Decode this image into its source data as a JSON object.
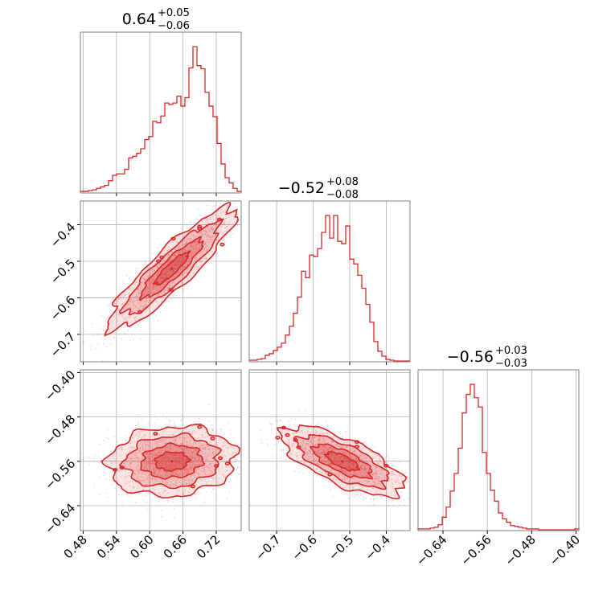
{
  "chart_data": {
    "type": "corner",
    "color": "#d62728",
    "grid": true,
    "parameters": [
      {
        "title": {
          "median": "0.64",
          "plus": "+0.05",
          "minus": "−0.06"
        },
        "range": [
          0.475,
          0.765
        ],
        "ticks": [
          0.48,
          0.54,
          0.6,
          0.66,
          0.72
        ],
        "tick_labels": [
          "0.48",
          "0.54",
          "0.60",
          "0.66",
          "0.72"
        ],
        "histogram": {
          "bin_edges_start": 0.475,
          "bin_width": 0.00725,
          "counts": [
            1,
            1,
            2,
            3,
            5,
            7,
            9,
            15,
            22,
            24,
            24,
            30,
            45,
            47,
            51,
            57,
            69,
            73,
            93,
            91,
            100,
            117,
            115,
            117,
            126,
            113,
            124,
            163,
            191,
            166,
            162,
            131,
            113,
            99,
            64,
            37,
            19,
            12,
            5,
            1
          ],
          "peak": 191
        },
        "h_ticks": [
          0.54,
          0.6,
          0.66,
          0.72
        ]
      },
      {
        "title": {
          "median": "−0.52",
          "plus": "+0.08",
          "minus": "−0.08"
        },
        "range": [
          -0.775,
          -0.335
        ],
        "ticks": [
          -0.7,
          -0.6,
          -0.5,
          -0.4
        ],
        "tick_labels": [
          "−0.7",
          "−0.6",
          "−0.5",
          "−0.4"
        ],
        "histogram": {
          "bin_edges_start": -0.775,
          "bin_width": 0.011,
          "counts": [
            1,
            1,
            2,
            3,
            7,
            9,
            13,
            17,
            22,
            32,
            43,
            59,
            79,
            111,
            103,
            131,
            129,
            139,
            159,
            180,
            152,
            180,
            148,
            145,
            167,
            126,
            120,
            106,
            90,
            70,
            48,
            24,
            12,
            6,
            2,
            1,
            0,
            0,
            0,
            0
          ],
          "peak": 180
        }
      },
      {
        "title": {
          "median": "−0.56",
          "plus": "+0.03",
          "minus": "−0.03"
        },
        "range": [
          -0.685,
          -0.395
        ],
        "ticks": [
          -0.64,
          -0.56,
          -0.48,
          -0.4
        ],
        "tick_labels": [
          "−0.64",
          "−0.56",
          "−0.48",
          "−0.40"
        ],
        "histogram": {
          "bin_edges_start": -0.685,
          "bin_width": 0.00725,
          "counts": [
            1,
            1,
            1,
            2,
            3,
            6,
            15,
            27,
            46,
            67,
            97,
            139,
            161,
            173,
            157,
            146,
            92,
            67,
            47,
            34,
            20,
            13,
            9,
            5,
            4,
            3,
            2,
            1,
            1,
            1,
            0,
            0,
            0,
            0,
            0,
            0,
            0,
            0,
            0,
            1
          ],
          "peak": 173
        }
      }
    ],
    "joint": [
      {
        "x_param": 0,
        "y_param": 1,
        "mean": [
          0.64,
          -0.52
        ],
        "sd": [
          0.055,
          0.08
        ],
        "correlation": 0.9
      },
      {
        "x_param": 0,
        "y_param": 2,
        "mean": [
          0.64,
          -0.56
        ],
        "sd": [
          0.055,
          0.03
        ],
        "correlation": 0.1
      },
      {
        "x_param": 1,
        "y_param": 2,
        "mean": [
          -0.52,
          -0.56
        ],
        "sd": [
          0.08,
          0.03
        ],
        "correlation": -0.7
      }
    ]
  }
}
